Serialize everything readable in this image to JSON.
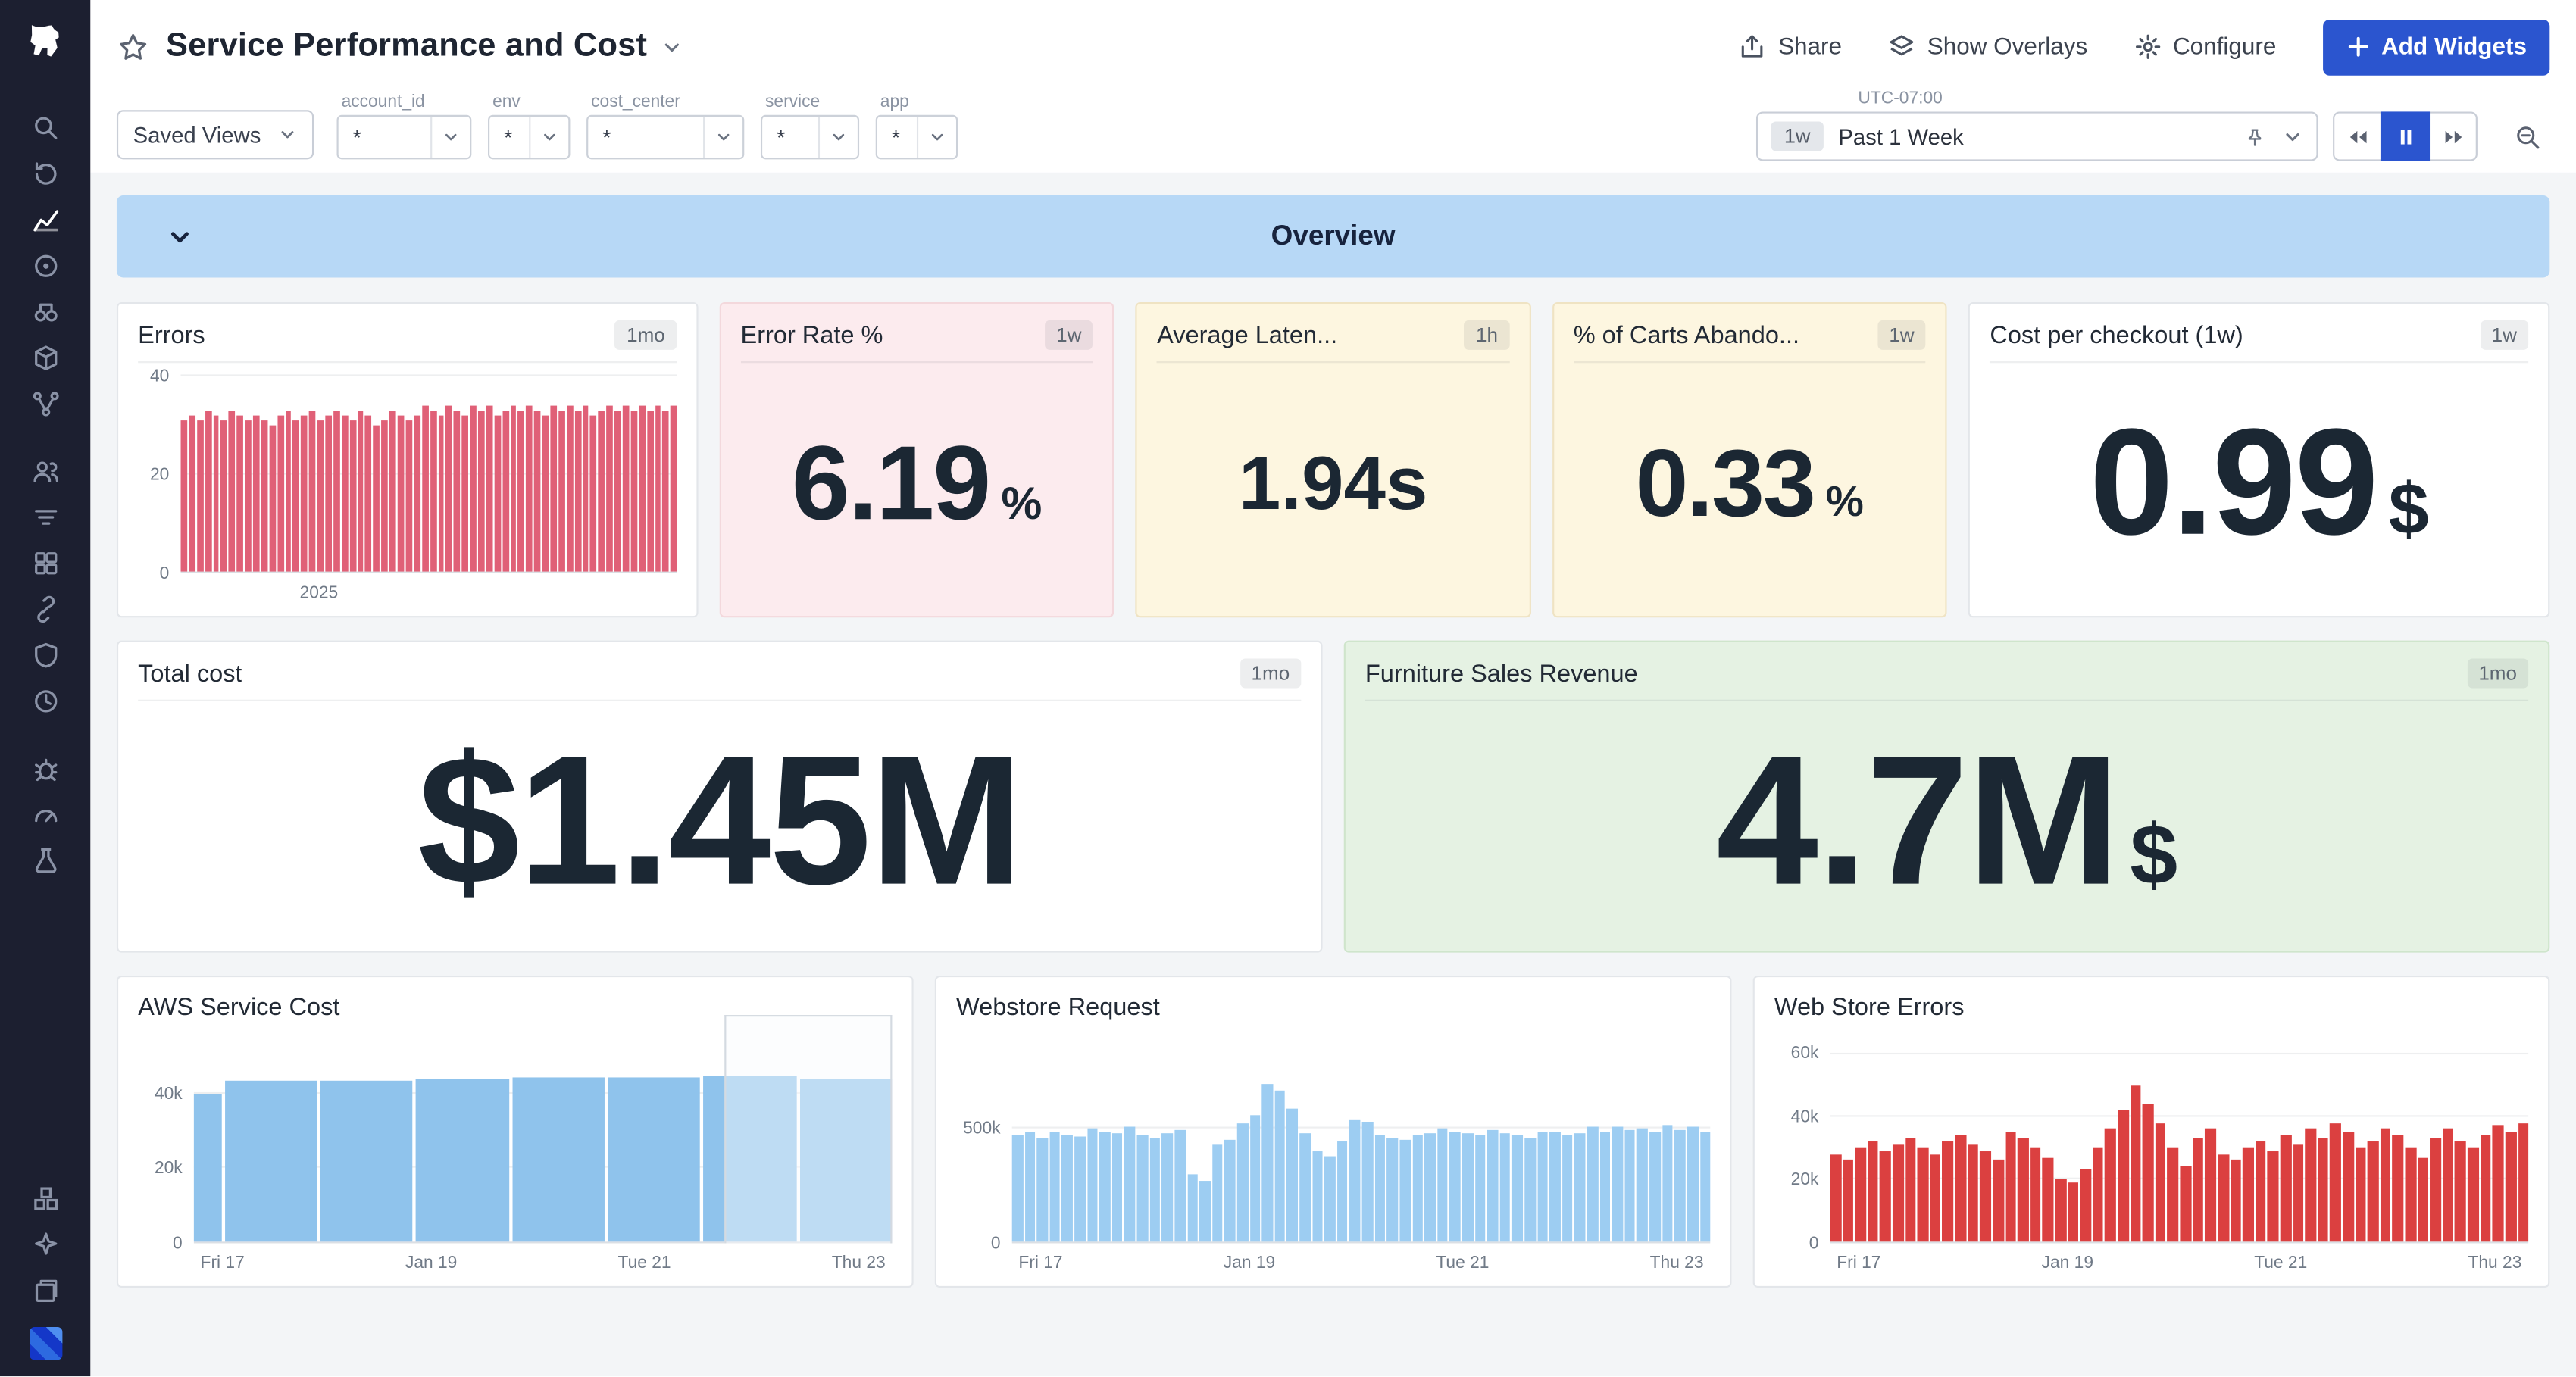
{
  "sidebar": {
    "icons": [
      "datadog-logo",
      "search",
      "watchdog-history",
      "metrics",
      "monitors",
      "synthetics",
      "integrations",
      "ci-pipelines",
      "team",
      "logs",
      "dashboards",
      "service-links",
      "security",
      "slo",
      "error-tracking",
      "gauge",
      "tests",
      "infrastructure",
      "bits-ai",
      "notebooks",
      "user-avatar"
    ]
  },
  "header": {
    "title": "Service Performance and Cost",
    "share": "Share",
    "show_overlays": "Show Overlays",
    "configure": "Configure",
    "add_widgets": "Add Widgets",
    "accent": "#2b55cf"
  },
  "filters": {
    "saved_views": "Saved Views",
    "vars": [
      {
        "label": "account_id",
        "value": "*"
      },
      {
        "label": "env",
        "value": "*"
      },
      {
        "label": "cost_center",
        "value": "*"
      },
      {
        "label": "service",
        "value": "*"
      },
      {
        "label": "app",
        "value": "*"
      }
    ]
  },
  "timebar": {
    "quick_range": "1w",
    "utc": "UTC-07:00",
    "range_label": "Past 1 Week"
  },
  "overview": {
    "title": "Overview"
  },
  "widgets": {
    "errors": {
      "title": "Errors",
      "badge": "1mo",
      "chart": {
        "type": "bar",
        "color": "#e06077",
        "ymax": 40,
        "yticks": [
          {
            "label": "40",
            "v": 40
          },
          {
            "label": "20",
            "v": 20
          },
          {
            "label": "0",
            "v": 0
          }
        ],
        "xticks": [
          "2025"
        ],
        "values": [
          31,
          32,
          31,
          33,
          32,
          31,
          33,
          32,
          31,
          32,
          31,
          30,
          32,
          33,
          31,
          32,
          33,
          31,
          32,
          33,
          32,
          31,
          33,
          32,
          30,
          31,
          33,
          32,
          31,
          32,
          34,
          33,
          32,
          34,
          33,
          32,
          34,
          33,
          34,
          32,
          33,
          34,
          33,
          34,
          33,
          32,
          34,
          33,
          34,
          33,
          34,
          32,
          33,
          34,
          33,
          34,
          33,
          34,
          33,
          34,
          33,
          34
        ]
      }
    },
    "error_rate": {
      "title": "Error Rate %",
      "badge": "1w",
      "value": "6.19",
      "unit": "%",
      "style": "background:#fcebee;border-color:#f3d8dc"
    },
    "avg_latency": {
      "title": "Average Laten...",
      "badge": "1h",
      "value": "1.94s",
      "style": "background:#fdf6e0;border-color:#efe3c3"
    },
    "carts_abandoned": {
      "title": "% of Carts Abando...",
      "badge": "1w",
      "value": "0.33",
      "unit": "%",
      "style": "background:#fdf6e0;border-color:#efe3c3"
    },
    "cost_per_checkout": {
      "title": "Cost per checkout (1w)",
      "badge": "1w",
      "value": "0.99",
      "unit": "$"
    },
    "total_cost": {
      "title": "Total cost",
      "badge": "1mo",
      "value": "$1.45M"
    },
    "furniture_revenue": {
      "title": "Furniture Sales Revenue",
      "badge": "1mo",
      "value": "4.7M",
      "unit": "$",
      "style": "background:#e5f2e3;border-color:#cfe5cc"
    },
    "aws_cost": {
      "title": "AWS Service Cost",
      "chart": {
        "type": "bar",
        "color": "#8fc3ec",
        "ymax": 55,
        "yticks": [
          {
            "label": "40k",
            "v": 40
          },
          {
            "label": "20k",
            "v": 20
          },
          {
            "label": "0",
            "v": 0
          }
        ],
        "xticks": [
          "Fri 17",
          "Jan 19",
          "Tue 21",
          "Thu 23"
        ],
        "values": [
          {
            "v": 40,
            "w": 0.3
          },
          {
            "v": 43.5,
            "w": 1
          },
          {
            "v": 43.5,
            "w": 1
          },
          {
            "v": 44,
            "w": 1
          },
          {
            "v": 44.5,
            "w": 1
          },
          {
            "v": 44.5,
            "w": 1
          },
          {
            "v": 45,
            "w": 1
          },
          {
            "v": 44,
            "w": 1
          }
        ]
      }
    },
    "webstore_requests": {
      "title": "Webstore Request",
      "chart": {
        "type": "bar",
        "color": "#9dcdf2",
        "ymax": 900,
        "yticks": [
          {
            "label": "500k",
            "v": 500
          },
          {
            "label": "0",
            "v": 0
          }
        ],
        "xticks": [
          "Fri 17",
          "Jan 19",
          "Tue 21",
          "Thu 23"
        ],
        "values": [
          470,
          485,
          460,
          490,
          475,
          465,
          500,
          490,
          480,
          505,
          470,
          455,
          480,
          495,
          300,
          270,
          430,
          450,
          520,
          560,
          700,
          670,
          590,
          480,
          400,
          380,
          445,
          540,
          530,
          470,
          455,
          450,
          470,
          480,
          500,
          490,
          480,
          470,
          495,
          480,
          470,
          460,
          485,
          490,
          470,
          480,
          505,
          490,
          510,
          495,
          500,
          485,
          515,
          495,
          505,
          490
        ]
      }
    },
    "webstore_errors": {
      "title": "Web Store Errors",
      "chart": {
        "type": "bar",
        "color": "#db4040",
        "ymax": 65,
        "yticks": [
          {
            "label": "60k",
            "v": 60
          },
          {
            "label": "40k",
            "v": 40
          },
          {
            "label": "20k",
            "v": 20
          },
          {
            "label": "0",
            "v": 0
          }
        ],
        "xticks": [
          "Fri 17",
          "Jan 19",
          "Tue 21",
          "Thu 23"
        ],
        "values": [
          28,
          26,
          30,
          32,
          29,
          31,
          33,
          30,
          28,
          32,
          34,
          31,
          29,
          26,
          35,
          33,
          30,
          27,
          20,
          19,
          23,
          30,
          36,
          42,
          50,
          44,
          38,
          30,
          24,
          33,
          36,
          28,
          26,
          30,
          32,
          29,
          34,
          31,
          36,
          33,
          38,
          35,
          30,
          32,
          36,
          34,
          30,
          27,
          33,
          36,
          32,
          30,
          34,
          37,
          35,
          38
        ]
      }
    }
  }
}
